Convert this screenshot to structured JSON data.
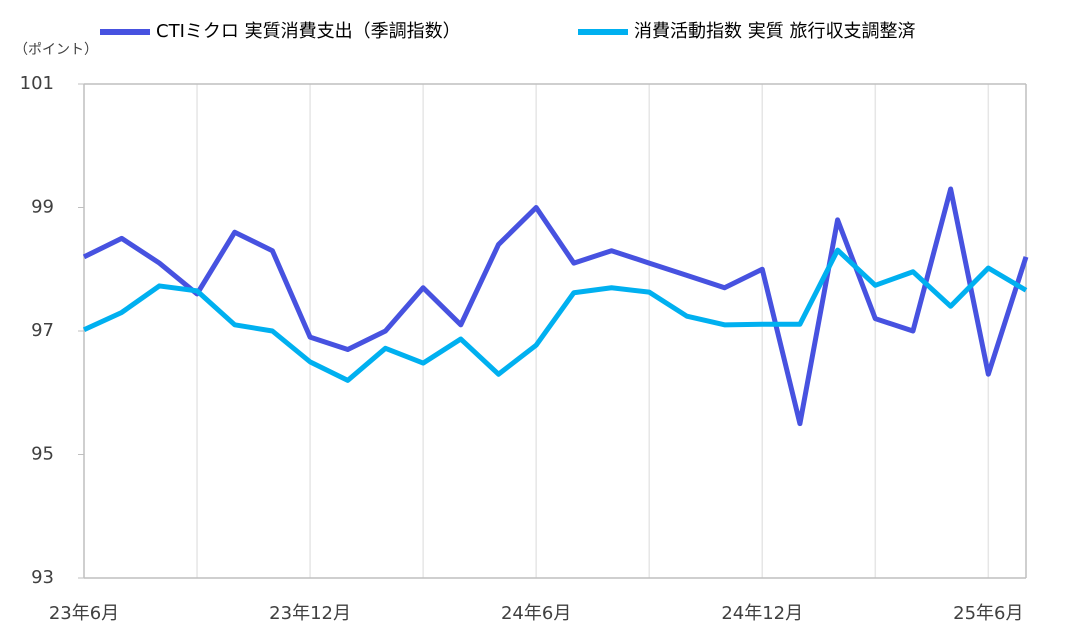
{
  "chart_data": {
    "type": "line",
    "y_unit_label": "（ポイント）",
    "categories": [
      "23年6月",
      null,
      null,
      null,
      null,
      null,
      "23年12月",
      null,
      null,
      null,
      null,
      null,
      "24年6月",
      null,
      null,
      null,
      null,
      null,
      "24年12月",
      null,
      null,
      null,
      null,
      null,
      "25年6月",
      null
    ],
    "series": [
      {
        "name": "CTIミクロ 実質消費支出（季調指数）",
        "color": "#4752E0",
        "values": [
          98.2,
          98.5,
          98.1,
          97.6,
          98.6,
          98.3,
          96.9,
          96.7,
          97.0,
          97.7,
          97.1,
          98.4,
          99.0,
          98.1,
          98.3,
          98.1,
          97.9,
          97.7,
          98.0,
          95.5,
          98.8,
          97.2,
          97.0,
          99.3,
          96.3,
          98.2
        ]
      },
      {
        "name": "消費活動指数 実質 旅行収支調整済",
        "color": "#00B0F0",
        "values": [
          97.02,
          97.3,
          97.73,
          97.65,
          97.1,
          97.0,
          96.5,
          96.2,
          96.72,
          96.48,
          96.87,
          96.3,
          96.77,
          97.62,
          97.7,
          97.63,
          97.24,
          97.1,
          97.11,
          97.11,
          98.31,
          97.74,
          97.96,
          97.4,
          98.02,
          97.66
        ]
      }
    ],
    "ylim": [
      93,
      101
    ],
    "yticks": [
      93,
      95,
      97,
      99,
      101
    ],
    "grid": true
  }
}
